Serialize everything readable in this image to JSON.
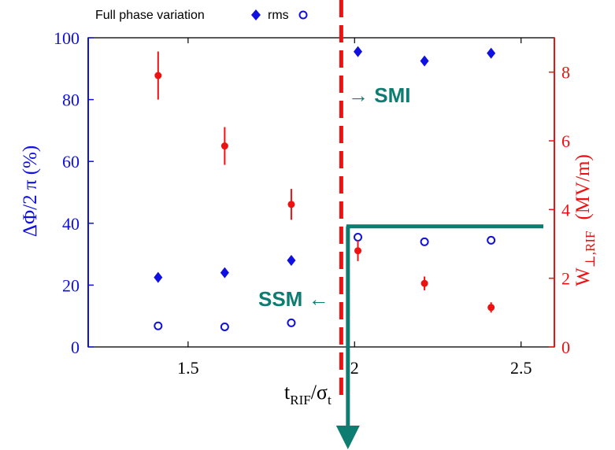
{
  "colors": {
    "left_axis": "#1010e0",
    "right_axis": "#ee1111",
    "annotation": "#0d7d72",
    "frame": "#000000"
  },
  "legend": {
    "full_label": "Full phase variation",
    "rms_label": "rms"
  },
  "annotations": {
    "smi": "→ SMI",
    "ssm": "SSM ←"
  },
  "chart_data": {
    "type": "scatter",
    "xlabel_main": "t",
    "xlabel_sub": "RIF",
    "xlabel_slash": "/σ",
    "xlabel_sub2": "t",
    "ylabel_left": "ΔΦ/2 π (%)",
    "ylabel_right_main": "W",
    "ylabel_right_sub": "⊥,RIF",
    "ylabel_right_unit": "(MV/m)",
    "xlim": [
      1.2,
      2.6
    ],
    "ylim_left": [
      0,
      100
    ],
    "ylim_right": [
      0,
      9
    ],
    "x_ticks": [
      1.5,
      2,
      2.5
    ],
    "x_tick_labels": [
      "1.5",
      "2",
      "2.5"
    ],
    "left_ticks": [
      0,
      20,
      40,
      60,
      80,
      100
    ],
    "left_tick_labels": [
      "0",
      "20",
      "40",
      "60",
      "80",
      "100"
    ],
    "right_ticks": [
      0,
      2,
      4,
      6,
      8
    ],
    "right_tick_labels": [
      "0",
      "2",
      "4",
      "6",
      "8"
    ],
    "series": [
      {
        "name": "Full phase variation",
        "axis": "left",
        "marker": "diamond",
        "x": [
          1.41,
          1.61,
          1.81,
          2.01,
          2.21,
          2.41
        ],
        "y": [
          22.5,
          24,
          28,
          95.5,
          92.5,
          95
        ]
      },
      {
        "name": "rms",
        "axis": "left",
        "marker": "open-circle",
        "x": [
          1.41,
          1.61,
          1.81,
          2.01,
          2.21,
          2.41
        ],
        "y": [
          6.8,
          6.5,
          7.8,
          35.5,
          34,
          34.5
        ]
      },
      {
        "axis": "right",
        "marker": "filled-circle-errorbar",
        "x": [
          1.41,
          1.61,
          1.81,
          2.01,
          2.21,
          2.41
        ],
        "y": [
          7.9,
          5.85,
          4.15,
          2.8,
          1.85,
          1.15
        ],
        "err": [
          0.7,
          0.55,
          0.45,
          0.3,
          0.2,
          0.15
        ]
      }
    ],
    "threshold_x": 1.96,
    "green_box_x": 1.98,
    "green_box_y_left": 39
  }
}
